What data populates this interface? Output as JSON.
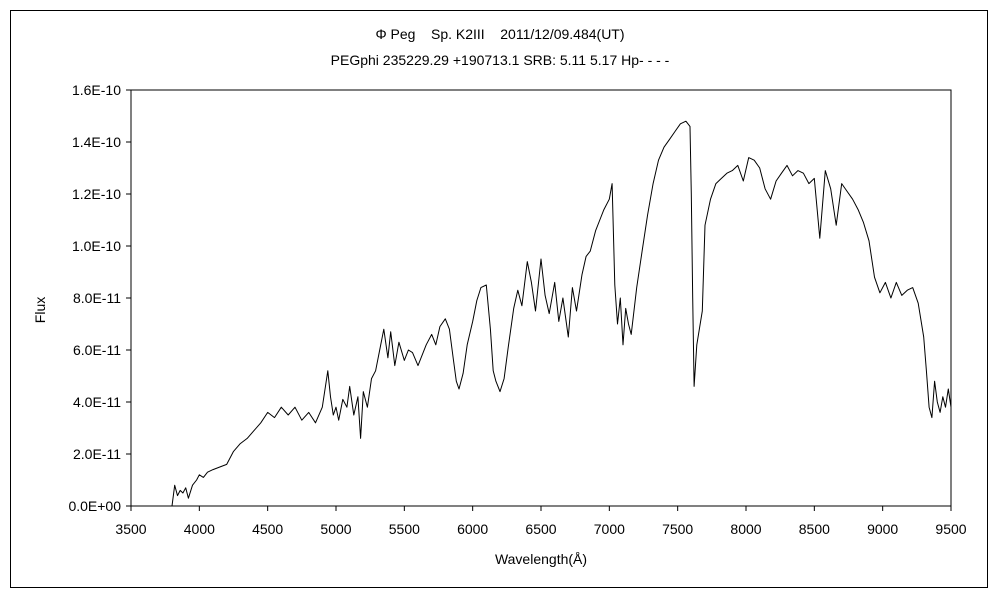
{
  "chart_data": {
    "type": "line",
    "title": "Φ Peg    Sp. K2III    2011/12/09.484(UT)",
    "subtitle": "PEGphi 235229.29 +190713.1 SRB: 5.11 5.17 Hp- - - -",
    "xlabel": "Wavelength(Å)",
    "ylabel": "Flux",
    "xlim": [
      3500,
      9500
    ],
    "ylim": [
      0,
      1.6e-10
    ],
    "x_ticks": [
      3500,
      4000,
      4500,
      5000,
      5500,
      6000,
      6500,
      7000,
      7500,
      8000,
      8500,
      9000,
      9500
    ],
    "x_tick_labels": [
      "3500",
      "4000",
      "4500",
      "5000",
      "5500",
      "6000",
      "6500",
      "7000",
      "7500",
      "8000",
      "8500",
      "9000",
      "9500"
    ],
    "y_ticks": [
      0,
      2e-11,
      4e-11,
      6e-11,
      8e-11,
      1e-10,
      1.2e-10,
      1.4e-10,
      1.6e-10
    ],
    "y_tick_labels": [
      "0.0E+00",
      "2.0E-11",
      "4.0E-11",
      "6.0E-11",
      "8.0E-11",
      "1.0E-10",
      "1.2E-10",
      "1.4E-10",
      "1.6E-10"
    ],
    "grid": false,
    "line_color": "#000000",
    "series": [
      {
        "x": [
          3800,
          3820,
          3840,
          3860,
          3880,
          3900,
          3920,
          3950,
          3980,
          4000,
          4030,
          4060,
          4100,
          4150,
          4200,
          4250,
          4300,
          4350,
          4400,
          4450,
          4500,
          4550,
          4600,
          4650,
          4700,
          4750,
          4800,
          4850,
          4900,
          4940,
          4960,
          4980,
          5000,
          5020,
          5050,
          5080,
          5100,
          5130,
          5160,
          5180,
          5200,
          5230,
          5260,
          5290,
          5320,
          5350,
          5380,
          5400,
          5430,
          5460,
          5500,
          5530,
          5560,
          5600,
          5630,
          5660,
          5700,
          5730,
          5760,
          5800,
          5830,
          5860,
          5880,
          5900,
          5930,
          5960,
          6000,
          6030,
          6060,
          6100,
          6130,
          6150,
          6170,
          6200,
          6230,
          6260,
          6300,
          6330,
          6360,
          6400,
          6430,
          6460,
          6500,
          6530,
          6560,
          6600,
          6630,
          6660,
          6700,
          6730,
          6760,
          6800,
          6830,
          6860,
          6900,
          6930,
          6960,
          7000,
          7020,
          7040,
          7060,
          7080,
          7100,
          7120,
          7140,
          7160,
          7200,
          7240,
          7280,
          7320,
          7360,
          7400,
          7440,
          7480,
          7520,
          7560,
          7590,
          7600,
          7610,
          7620,
          7640,
          7680,
          7700,
          7740,
          7780,
          7820,
          7860,
          7900,
          7940,
          7980,
          8020,
          8060,
          8100,
          8140,
          8180,
          8220,
          8260,
          8300,
          8340,
          8380,
          8420,
          8460,
          8500,
          8540,
          8580,
          8620,
          8660,
          8700,
          8740,
          8780,
          8820,
          8860,
          8900,
          8940,
          8980,
          9020,
          9060,
          9100,
          9140,
          9180,
          9220,
          9260,
          9300,
          9320,
          9340,
          9360,
          9380,
          9400,
          9420,
          9440,
          9460,
          9480,
          9500
        ],
        "y": [
          0,
          8e-12,
          4e-12,
          6e-12,
          5e-12,
          7e-12,
          3e-12,
          8e-12,
          1e-11,
          1.2e-11,
          1.1e-11,
          1.3e-11,
          1.4e-11,
          1.5e-11,
          1.6e-11,
          2.1e-11,
          2.4e-11,
          2.6e-11,
          2.9e-11,
          3.2e-11,
          3.6e-11,
          3.4e-11,
          3.8e-11,
          3.5e-11,
          3.8e-11,
          3.3e-11,
          3.6e-11,
          3.2e-11,
          3.8e-11,
          5.2e-11,
          4.2e-11,
          3.5e-11,
          3.8e-11,
          3.3e-11,
          4.1e-11,
          3.8e-11,
          4.6e-11,
          3.5e-11,
          4.2e-11,
          2.6e-11,
          4.4e-11,
          3.8e-11,
          4.9e-11,
          5.2e-11,
          6e-11,
          6.8e-11,
          5.7e-11,
          6.7e-11,
          5.4e-11,
          6.3e-11,
          5.6e-11,
          6e-11,
          5.9e-11,
          5.4e-11,
          5.8e-11,
          6.2e-11,
          6.6e-11,
          6.2e-11,
          6.9e-11,
          7.2e-11,
          6.8e-11,
          5.6e-11,
          4.8e-11,
          4.5e-11,
          5.1e-11,
          6.2e-11,
          7.1e-11,
          7.9e-11,
          8.4e-11,
          8.5e-11,
          6.8e-11,
          5.2e-11,
          4.8e-11,
          4.4e-11,
          4.9e-11,
          6.1e-11,
          7.6e-11,
          8.3e-11,
          7.7e-11,
          9.4e-11,
          8.6e-11,
          7.5e-11,
          9.5e-11,
          8.1e-11,
          7.4e-11,
          8.6e-11,
          7.1e-11,
          8e-11,
          6.5e-11,
          8.4e-11,
          7.5e-11,
          8.9e-11,
          9.6e-11,
          9.8e-11,
          1.06e-10,
          1.1e-10,
          1.14e-10,
          1.18e-10,
          1.24e-10,
          8.5e-11,
          7e-11,
          8e-11,
          6.2e-11,
          7.6e-11,
          7e-11,
          6.6e-11,
          8.4e-11,
          9.8e-11,
          1.12e-10,
          1.24e-10,
          1.33e-10,
          1.38e-10,
          1.41e-10,
          1.44e-10,
          1.47e-10,
          1.48e-10,
          1.46e-10,
          1.2e-10,
          8e-11,
          4.6e-11,
          6.2e-11,
          7.5e-11,
          1.08e-10,
          1.18e-10,
          1.24e-10,
          1.26e-10,
          1.28e-10,
          1.29e-10,
          1.31e-10,
          1.25e-10,
          1.34e-10,
          1.33e-10,
          1.3e-10,
          1.22e-10,
          1.18e-10,
          1.25e-10,
          1.28e-10,
          1.31e-10,
          1.27e-10,
          1.29e-10,
          1.28e-10,
          1.24e-10,
          1.26e-10,
          1.03e-10,
          1.29e-10,
          1.22e-10,
          1.08e-10,
          1.24e-10,
          1.21e-10,
          1.18e-10,
          1.14e-10,
          1.09e-10,
          1.02e-10,
          8.8e-11,
          8.2e-11,
          8.6e-11,
          8e-11,
          8.6e-11,
          8.1e-11,
          8.3e-11,
          8.4e-11,
          7.8e-11,
          6.5e-11,
          5.2e-11,
          3.8e-11,
          3.4e-11,
          4.8e-11,
          4e-11,
          3.6e-11,
          4.2e-11,
          3.8e-11,
          4.5e-11,
          3.8e-11
        ]
      }
    ]
  }
}
